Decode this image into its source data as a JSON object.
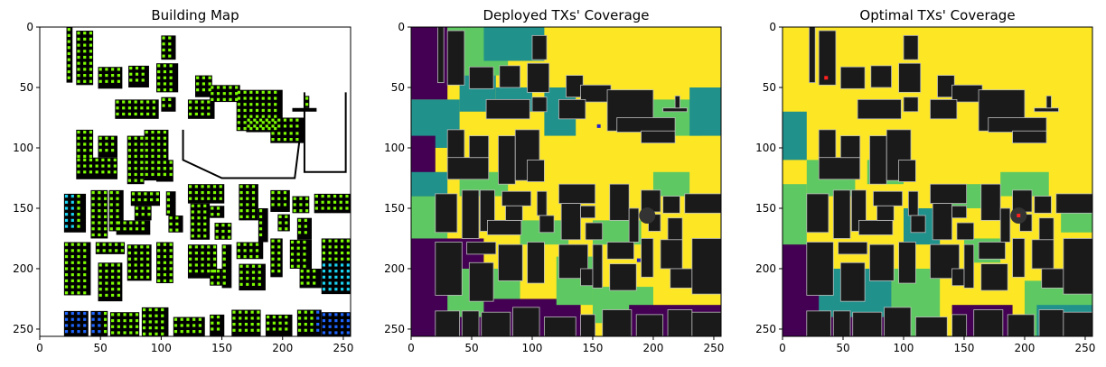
{
  "chart_data": [
    {
      "type": "heatmap",
      "title": "Building Map",
      "x_ticks": [
        0,
        50,
        100,
        150,
        200,
        250
      ],
      "y_ticks": [
        0,
        50,
        100,
        150,
        200,
        250
      ],
      "xlim": [
        0,
        256
      ],
      "ylim": [
        256,
        0
      ],
      "background": "#ffffff",
      "building_color": "#000000",
      "marker_colors": {
        "green": "#7cfc00",
        "cyan": "#19d3f3",
        "blue": "#1e64ff"
      }
    },
    {
      "type": "heatmap",
      "title": "Deployed TXs' Coverage",
      "x_ticks": [
        0,
        50,
        100,
        150,
        200,
        250
      ],
      "y_ticks": [
        0,
        50,
        100,
        150,
        200,
        250
      ],
      "xlim": [
        0,
        256
      ],
      "ylim": [
        256,
        0
      ],
      "colormap": [
        "#440154",
        "#21918c",
        "#5ec962",
        "#fde725"
      ],
      "building_color": "#1a1a1a",
      "tx_marker_color": "#2222cc"
    },
    {
      "type": "heatmap",
      "title": "Optimal TXs' Coverage",
      "x_ticks": [
        0,
        50,
        100,
        150,
        200,
        250
      ],
      "y_ticks": [
        0,
        50,
        100,
        150,
        200,
        250
      ],
      "xlim": [
        0,
        256
      ],
      "ylim": [
        256,
        0
      ],
      "colormap": [
        "#440154",
        "#21918c",
        "#5ec962",
        "#fde725"
      ],
      "building_color": "#1a1a1a",
      "tx_marker_color": "#ff2020"
    }
  ]
}
